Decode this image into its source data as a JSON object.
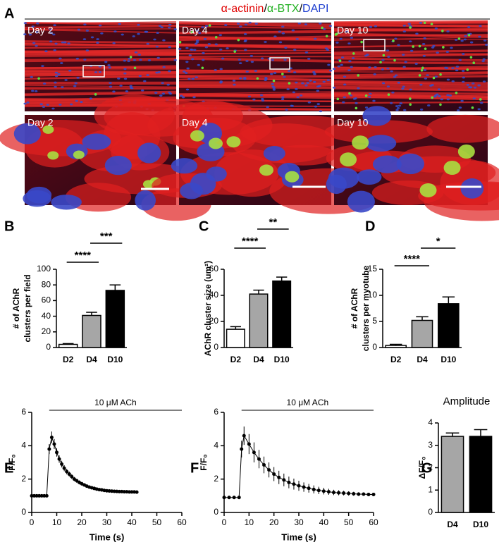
{
  "figure": {
    "panel_label": "A",
    "title_parts": [
      "α-actinin",
      "/",
      "α-BTX",
      "/",
      "DAPI"
    ],
    "title_colors": [
      "#e00000",
      "#000000",
      "#20b020",
      "#000000",
      "#2040d0"
    ],
    "image_labels": [
      "Day 2",
      "Day 4",
      "Day 10",
      "Day 2",
      "Day 4",
      "Day 10"
    ]
  },
  "chart_data": [
    {
      "type": "bar",
      "panel_label": "B",
      "categories": [
        "D2",
        "D4",
        "D10"
      ],
      "values": [
        4,
        41,
        73
      ],
      "errors": [
        1,
        4,
        7
      ],
      "colors": [
        "#ffffff",
        "#a6a6a6",
        "#000000"
      ],
      "ylabel": [
        "# of AChR",
        "clusters per field"
      ],
      "ylim": [
        0,
        100
      ],
      "yticks": [
        0,
        20,
        40,
        60,
        80,
        100
      ],
      "significance": [
        "****",
        "***"
      ]
    },
    {
      "type": "bar",
      "panel_label": "C",
      "categories": [
        "D2",
        "D4",
        "D10"
      ],
      "values": [
        14,
        41,
        51
      ],
      "errors": [
        2,
        3,
        3
      ],
      "colors": [
        "#ffffff",
        "#a6a6a6",
        "#000000"
      ],
      "ylabel": [
        "AChR cluster size (um²)"
      ],
      "ylim": [
        0,
        60
      ],
      "yticks": [
        0,
        20,
        40,
        60
      ],
      "significance": [
        "****",
        "**"
      ]
    },
    {
      "type": "bar",
      "panel_label": "D",
      "categories": [
        "D2",
        "D4",
        "D10"
      ],
      "values": [
        0.4,
        5.2,
        8.4
      ],
      "errors": [
        0.2,
        0.7,
        1.3
      ],
      "colors": [
        "#ffffff",
        "#a6a6a6",
        "#000000"
      ],
      "ylabel": [
        "# of AChR",
        "clusters per myotube"
      ],
      "ylim": [
        0,
        15
      ],
      "yticks": [
        0,
        5,
        10,
        15
      ],
      "significance": [
        "****",
        "*"
      ]
    },
    {
      "type": "line",
      "panel_label": "E",
      "color": "#000000",
      "x": [
        0,
        1,
        2,
        3,
        4,
        5,
        6,
        7,
        8,
        9,
        10,
        11,
        12,
        13,
        14,
        15,
        16,
        17,
        18,
        19,
        20,
        21,
        22,
        23,
        24,
        25,
        26,
        27,
        28,
        29,
        30,
        31,
        32,
        33,
        34,
        35,
        36,
        37,
        38,
        39,
        40,
        41,
        42
      ],
      "values": [
        1,
        1,
        1,
        1,
        1,
        1,
        1,
        3.8,
        4.5,
        4.1,
        3.6,
        3.2,
        2.9,
        2.65,
        2.45,
        2.3,
        2.15,
        2.0,
        1.9,
        1.8,
        1.72,
        1.65,
        1.58,
        1.52,
        1.48,
        1.44,
        1.4,
        1.37,
        1.35,
        1.32,
        1.3,
        1.29,
        1.28,
        1.27,
        1.26,
        1.25,
        1.25,
        1.24,
        1.24,
        1.23,
        1.23,
        1.23,
        1.22
      ],
      "errors": [
        0.05,
        0.05,
        0.05,
        0.05,
        0.05,
        0.05,
        0.05,
        0.3,
        0.35,
        0.3,
        0.25,
        0.22,
        0.2,
        0.18,
        0.16,
        0.15,
        0.14,
        0.13,
        0.12,
        0.12,
        0.11,
        0.1,
        0.1,
        0.09,
        0.09,
        0.08,
        0.08,
        0.08,
        0.07,
        0.07,
        0.07,
        0.06,
        0.06,
        0.06,
        0.06,
        0.05,
        0.05,
        0.05,
        0.05,
        0.05,
        0.05,
        0.05,
        0.05
      ],
      "ylabel": [
        "F/F₀"
      ],
      "xlabel": "Time (s)",
      "xlim": [
        0,
        60
      ],
      "xticks": [
        0,
        10,
        20,
        30,
        40,
        50,
        60
      ],
      "ylim": [
        0,
        6
      ],
      "yticks": [
        0,
        2,
        4,
        6
      ],
      "annotation": {
        "text": "10 μM ACh",
        "x": [
          7,
          60
        ]
      }
    },
    {
      "type": "line",
      "panel_label": "F",
      "color": "#000000",
      "x": [
        0,
        2,
        4,
        6,
        7,
        8,
        10,
        12,
        14,
        16,
        18,
        20,
        22,
        24,
        26,
        28,
        30,
        32,
        34,
        36,
        38,
        40,
        42,
        44,
        46,
        48,
        50,
        52,
        54,
        56,
        58,
        60
      ],
      "values": [
        0.9,
        0.9,
        0.9,
        0.9,
        3.8,
        4.6,
        4.1,
        3.6,
        3.2,
        2.85,
        2.55,
        2.3,
        2.1,
        1.95,
        1.8,
        1.7,
        1.6,
        1.52,
        1.45,
        1.38,
        1.32,
        1.28,
        1.24,
        1.2,
        1.18,
        1.16,
        1.14,
        1.12,
        1.1,
        1.1,
        1.08,
        1.08
      ],
      "errors": [
        0.05,
        0.05,
        0.05,
        0.05,
        0.5,
        0.55,
        0.6,
        0.6,
        0.55,
        0.5,
        0.45,
        0.42,
        0.4,
        0.38,
        0.35,
        0.33,
        0.3,
        0.28,
        0.26,
        0.24,
        0.22,
        0.2,
        0.18,
        0.16,
        0.15,
        0.14,
        0.13,
        0.12,
        0.11,
        0.1,
        0.1,
        0.1
      ],
      "ylabel": [
        "F/F₀"
      ],
      "xlabel": "Time (s)",
      "xlim": [
        0,
        60
      ],
      "xticks": [
        0,
        10,
        20,
        30,
        40,
        50,
        60
      ],
      "ylim": [
        0,
        6
      ],
      "yticks": [
        0,
        2,
        4,
        6
      ],
      "annotation": {
        "text": "10 μM ACh",
        "x": [
          7,
          60
        ]
      }
    },
    {
      "type": "bar",
      "panel_label": "G",
      "title": "Amplitude",
      "categories": [
        "D4",
        "D10"
      ],
      "values": [
        3.4,
        3.4
      ],
      "errors": [
        0.15,
        0.3
      ],
      "colors": [
        "#a6a6a6",
        "#000000"
      ],
      "ylabel": [
        "ΔF/F₀"
      ],
      "ylim": [
        0,
        4
      ],
      "yticks": [
        0,
        1,
        2,
        3,
        4
      ]
    }
  ]
}
